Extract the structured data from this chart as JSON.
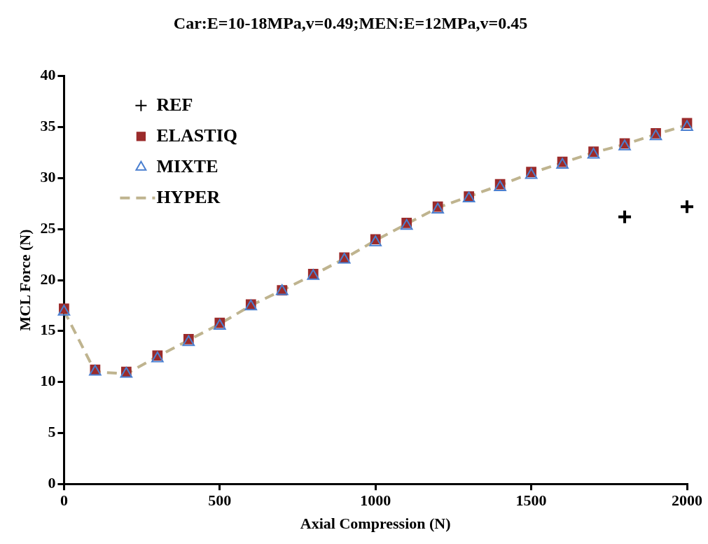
{
  "chart_data": {
    "type": "scatter",
    "title": "Car:E=10-18MPa,v=0.49;MEN:E=12MPa,v=0.45",
    "xlabel": "Axial Compression (N)",
    "ylabel": "MCL Force (N)",
    "xlim": [
      0,
      2000
    ],
    "xticks": [
      0,
      500,
      1000,
      1500,
      2000
    ],
    "ylim": [
      0,
      40
    ],
    "yticks": [
      0,
      5,
      10,
      15,
      20,
      25,
      30,
      35,
      40
    ],
    "legend": "top left",
    "series": [
      {
        "name": "REF",
        "type": "scatter",
        "marker": "cross",
        "color": "#000000",
        "x": [
          1800,
          2000
        ],
        "values": [
          26.2,
          27.2
        ]
      },
      {
        "name": "ELASTIQ",
        "type": "scatter",
        "marker": "square",
        "color": "#9b2b2b",
        "x": [
          0,
          100,
          200,
          300,
          400,
          500,
          600,
          700,
          800,
          900,
          1000,
          1100,
          1200,
          1300,
          1400,
          1500,
          1600,
          1700,
          1800,
          1900,
          2000
        ],
        "values": [
          17.2,
          11.2,
          11.0,
          12.6,
          14.2,
          15.8,
          17.6,
          19.0,
          20.6,
          22.2,
          24.0,
          25.6,
          27.2,
          28.2,
          29.4,
          30.6,
          31.6,
          32.6,
          33.4,
          34.4,
          35.4
        ]
      },
      {
        "name": "MIXTE",
        "type": "scatter",
        "marker": "triangle",
        "color": "#4a7fd0",
        "x": [
          0,
          100,
          200,
          300,
          400,
          500,
          600,
          700,
          800,
          900,
          1000,
          1100,
          1200,
          1300,
          1400,
          1500,
          1600,
          1700,
          1800,
          1900,
          2000
        ],
        "values": [
          16.9,
          11.0,
          10.8,
          12.3,
          13.9,
          15.5,
          17.4,
          18.9,
          20.4,
          22.0,
          23.7,
          25.3,
          26.9,
          28.0,
          29.1,
          30.3,
          31.3,
          32.3,
          33.1,
          34.1,
          35.0
        ]
      },
      {
        "name": "HYPER",
        "type": "line",
        "marker": "none",
        "line_style": "dashed",
        "color": "#bfb48f",
        "x": [
          0,
          100,
          200,
          300,
          400,
          500,
          600,
          700,
          800,
          900,
          1000,
          1100,
          1200,
          1300,
          1400,
          1500,
          1600,
          1700,
          1800,
          1900,
          2000
        ],
        "values": [
          17.0,
          11.0,
          10.8,
          12.5,
          14.1,
          15.7,
          17.5,
          19.0,
          20.5,
          22.1,
          23.9,
          25.5,
          27.1,
          28.2,
          29.3,
          30.5,
          31.5,
          32.5,
          33.3,
          34.3,
          35.2
        ]
      }
    ]
  }
}
